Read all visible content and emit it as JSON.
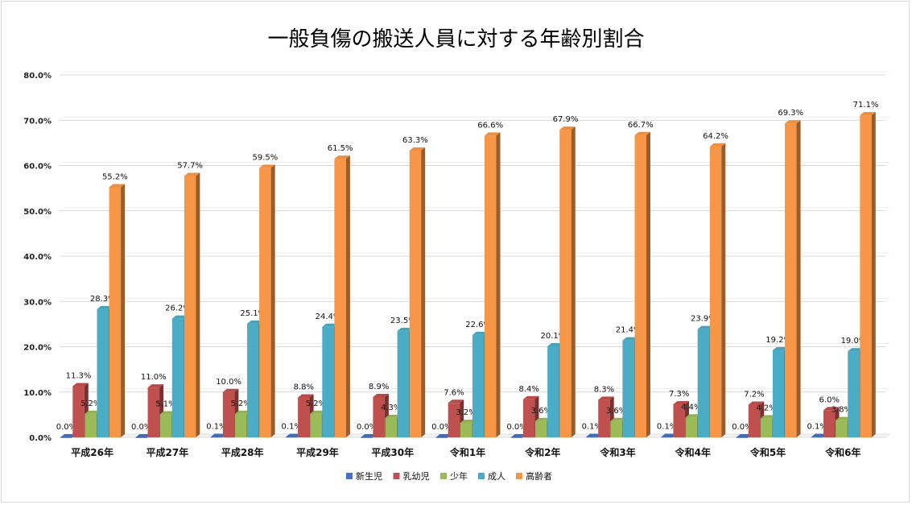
{
  "chart_data": {
    "type": "bar",
    "title": "一般負傷の搬送人員に対する年齢別割合",
    "xlabel": "",
    "ylabel": "",
    "ylim": [
      0,
      80
    ],
    "yticks": [
      "0.0%",
      "10.0%",
      "20.0%",
      "30.0%",
      "40.0%",
      "50.0%",
      "60.0%",
      "70.0%",
      "80.0%"
    ],
    "categories": [
      "平成26年",
      "平成27年",
      "平成28年",
      "平成29年",
      "平成30年",
      "令和1年",
      "令和2年",
      "令和3年",
      "令和4年",
      "令和5年",
      "令和6年"
    ],
    "series": [
      {
        "name": "新生児",
        "color": "#4472C4",
        "values": [
          0.0,
          0.0,
          0.1,
          0.1,
          0.0,
          0.0,
          0.0,
          0.1,
          0.1,
          0.0,
          0.1
        ],
        "labels": [
          "0.0%",
          "0.0%",
          "0.1%",
          "0.1%",
          "0.0%",
          "0.0%",
          "0.0%",
          "0.1%",
          "0.1%",
          "0.0%",
          "0.1%"
        ]
      },
      {
        "name": "乳幼児",
        "color": "#C0504D",
        "values": [
          11.3,
          11.0,
          10.0,
          8.8,
          8.9,
          7.6,
          8.4,
          8.3,
          7.3,
          7.2,
          6.0
        ],
        "labels": [
          "11.3%",
          "11.0%",
          "10.0%",
          "8.8%",
          "8.9%",
          "7.6%",
          "8.4%",
          "8.3%",
          "7.3%",
          "7.2%",
          "6.0%"
        ]
      },
      {
        "name": "少年",
        "color": "#9BBB59",
        "values": [
          5.2,
          5.1,
          5.2,
          5.2,
          4.3,
          3.2,
          3.6,
          3.6,
          4.4,
          4.2,
          3.8
        ],
        "labels": [
          "5.2%",
          "5.1%",
          "5.2%",
          "5.2%",
          "4.3%",
          "3.2%",
          "3.6%",
          "3.6%",
          "4.4%",
          "4.2%",
          "3.8%"
        ]
      },
      {
        "name": "成人",
        "color": "#4BACC6",
        "values": [
          28.3,
          26.2,
          25.1,
          24.4,
          23.5,
          22.6,
          20.1,
          21.4,
          23.9,
          19.2,
          19.0
        ],
        "labels": [
          "28.3%",
          "26.2%",
          "25.1%",
          "24.4%",
          "23.5%",
          "22.6%",
          "20.1%",
          "21.4%",
          "23.9%",
          "19.2%",
          "19.0%"
        ]
      },
      {
        "name": "高齢者",
        "color": "#F79646",
        "values": [
          55.2,
          57.7,
          59.5,
          61.5,
          63.3,
          66.6,
          67.9,
          66.7,
          64.2,
          69.3,
          71.1
        ],
        "labels": [
          "55.2%",
          "57.7%",
          "59.5%",
          "61.5%",
          "63.3%",
          "66.6%",
          "67.9%",
          "66.7%",
          "64.2%",
          "69.3%",
          "71.1%"
        ]
      }
    ],
    "legend": "bottom",
    "grid": true
  }
}
